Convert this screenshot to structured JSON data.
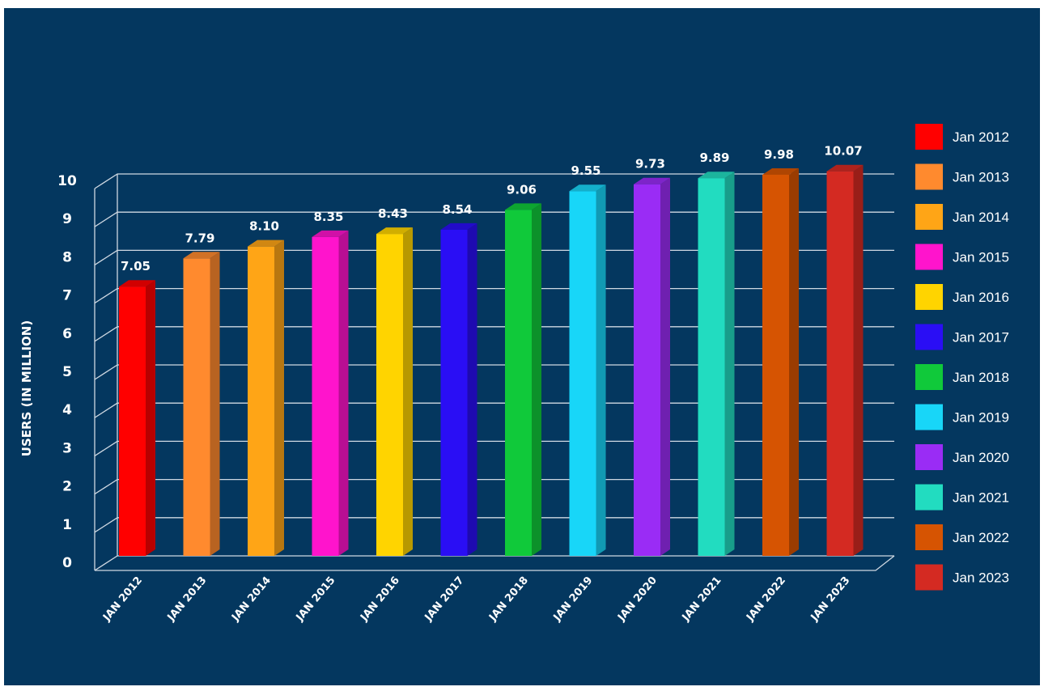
{
  "chart_data": {
    "type": "bar",
    "title": "",
    "xlabel": "",
    "ylabel": "USERS (IN MILLION)",
    "ylim": [
      0,
      10
    ],
    "yticks": [
      "0",
      "1",
      "2",
      "3",
      "4",
      "5",
      "6",
      "7",
      "8",
      "9",
      "10"
    ],
    "grid": true,
    "legend_position": "right",
    "categories": [
      "JAN 2012",
      "JAN 2013",
      "JAN 2014",
      "JAN 2015",
      "JAN 2016",
      "JAN 2017",
      "JAN 2018",
      "JAN 2019",
      "JAN 2020",
      "JAN 2021",
      "JAN 2022",
      "JAN 2023"
    ],
    "values": [
      7.05,
      7.79,
      8.1,
      8.35,
      8.43,
      8.54,
      9.06,
      9.55,
      9.73,
      9.89,
      9.98,
      10.07
    ],
    "value_labels": [
      "7.05",
      "7.79",
      "8.10",
      "8.35",
      "8.43",
      "8.54",
      "9.06",
      "9.55",
      "9.73",
      "9.89",
      "9.98",
      "10.07"
    ],
    "legend": [
      "Jan 2012",
      "Jan 2013",
      "Jan 2014",
      "Jan 2015",
      "Jan 2016",
      "Jan 2017",
      "Jan 2018",
      "Jan 2019",
      "Jan 2020",
      "Jan 2021",
      "Jan 2022",
      "Jan 2023"
    ],
    "colors": [
      "#ff0000",
      "#ff8a2e",
      "#ffa516",
      "#ff14cc",
      "#ffd400",
      "#2a0ef5",
      "#10c93a",
      "#18d6f8",
      "#9a2cf5",
      "#22dcc0",
      "#d65402",
      "#d42a22"
    ],
    "background": "#04375f"
  }
}
